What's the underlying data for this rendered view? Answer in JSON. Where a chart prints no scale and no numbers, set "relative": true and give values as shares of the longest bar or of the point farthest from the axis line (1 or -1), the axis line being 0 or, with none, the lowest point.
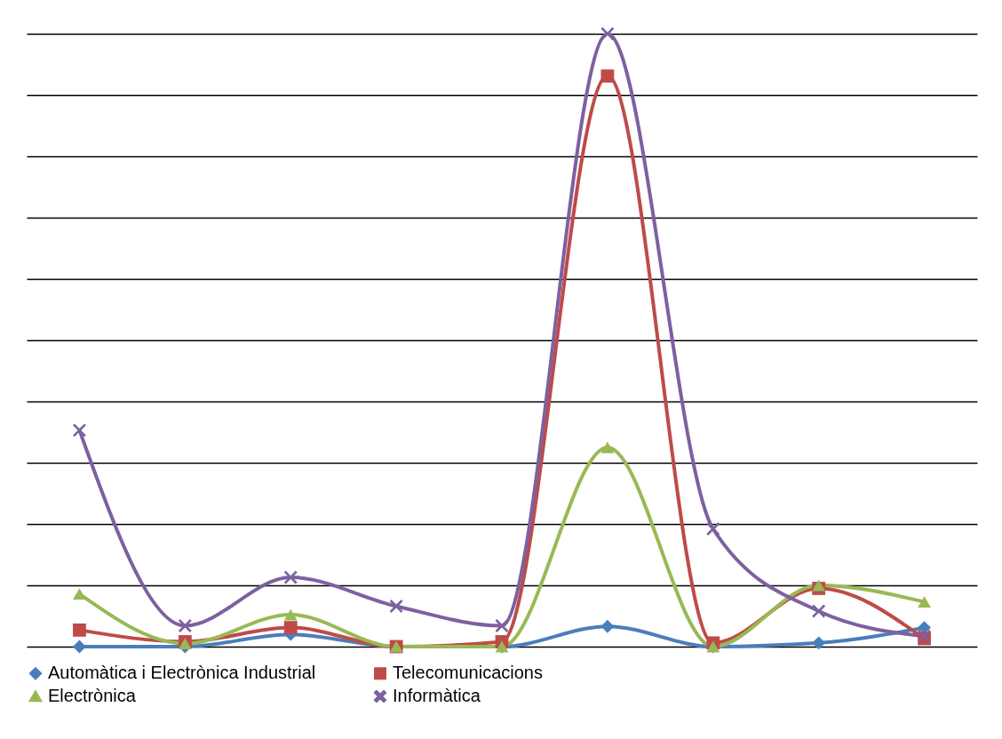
{
  "chart_data": {
    "type": "line",
    "relative": true,
    "categories": [
      null,
      null,
      null,
      null,
      null,
      null,
      null,
      null,
      null
    ],
    "series": [
      {
        "name": "Automàtica i Electrònica Industrial",
        "color": "#4a7ebb",
        "marker": "diamond",
        "values": [
          0,
          0,
          0.02,
          0,
          0,
          0.033,
          0,
          0.006,
          0.031
        ]
      },
      {
        "name": "Telecomunicacions",
        "color": "#be4b48",
        "marker": "square",
        "values": [
          0.027,
          0.008,
          0.031,
          0,
          0.008,
          0.931,
          0.006,
          0.095,
          0.013
        ]
      },
      {
        "name": "Electrònica",
        "color": "#98b954",
        "marker": "triangle",
        "values": [
          0.086,
          0.005,
          0.052,
          0,
          0,
          0.325,
          0,
          0.1,
          0.073
        ]
      },
      {
        "name": "Informàtica",
        "color": "#7d60a0",
        "marker": "cross",
        "values": [
          0.353,
          0.034,
          0.113,
          0.066,
          0.034,
          1,
          0.192,
          0.058,
          0.017
        ]
      }
    ],
    "grid": "y",
    "legend": "bottom",
    "line_style": "solid"
  }
}
